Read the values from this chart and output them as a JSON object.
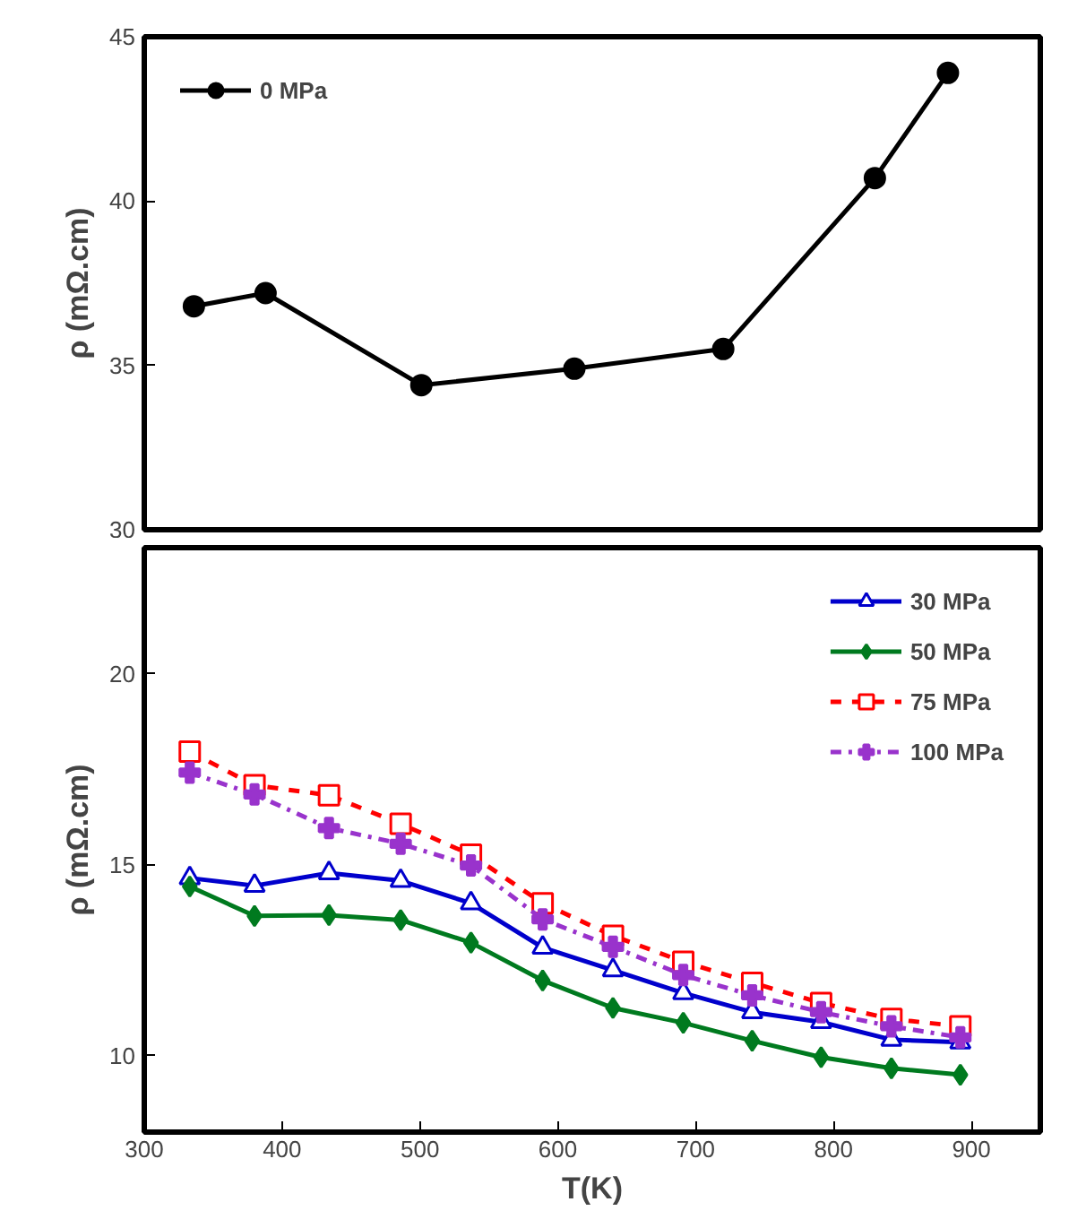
{
  "chart_data": [
    {
      "type": "line",
      "ylabel": "ρ (mΩ.cm)",
      "xlim": [
        300,
        950
      ],
      "xticks": [
        300,
        400,
        500,
        600,
        700,
        800,
        900
      ],
      "ylim": [
        30,
        45
      ],
      "yticks": [
        30,
        35,
        40,
        45
      ],
      "tick_labels": "y",
      "grid": false,
      "legend": "top left",
      "series": [
        {
          "name": "0 MPa",
          "color": "#000000",
          "marker": "circle",
          "line_style": "solid",
          "x": [
            336,
            388,
            501,
            612,
            720,
            830,
            883
          ],
          "values": [
            36.8,
            37.2,
            34.4,
            34.9,
            35.5,
            40.7,
            43.9
          ]
        }
      ]
    },
    {
      "type": "line",
      "ylabel": "ρ (mΩ.cm)",
      "xlabel": "T(K)",
      "xlim": [
        300,
        950
      ],
      "xticks": [
        300,
        400,
        500,
        600,
        700,
        800,
        900
      ],
      "ylim": [
        8,
        23.3
      ],
      "yticks": [
        10,
        15,
        20
      ],
      "grid": false,
      "legend": "top right",
      "x": [
        333,
        380,
        434,
        486,
        537,
        589,
        640,
        691,
        741,
        791,
        842,
        892
      ],
      "series": [
        {
          "name": "30 MPa",
          "color": "#0000cc",
          "marker": "triangle",
          "line_style": "solid",
          "values": [
            14.65,
            14.45,
            14.78,
            14.58,
            13.99,
            12.83,
            12.24,
            11.64,
            11.14,
            10.88,
            10.42,
            10.35
          ]
        },
        {
          "name": "50 MPa",
          "color": "#007a1f",
          "marker": "diamond",
          "line_style": "solid",
          "values": [
            14.43,
            13.66,
            13.68,
            13.55,
            12.96,
            11.97,
            11.25,
            10.86,
            10.39,
            9.96,
            9.67,
            9.5
          ]
        },
        {
          "name": "75 MPa",
          "color": "#ff0000",
          "marker": "square",
          "line_style": "dashed",
          "values": [
            17.96,
            17.08,
            16.82,
            16.07,
            15.26,
            13.99,
            13.14,
            12.46,
            11.91,
            11.38,
            10.96,
            10.77
          ]
        },
        {
          "name": "100 MPa",
          "color": "#9933cc",
          "marker": "cross",
          "line_style": "dashdot",
          "values": [
            17.41,
            16.84,
            15.96,
            15.55,
            14.98,
            13.57,
            12.85,
            12.11,
            11.58,
            11.14,
            10.77,
            10.48
          ]
        }
      ]
    }
  ]
}
